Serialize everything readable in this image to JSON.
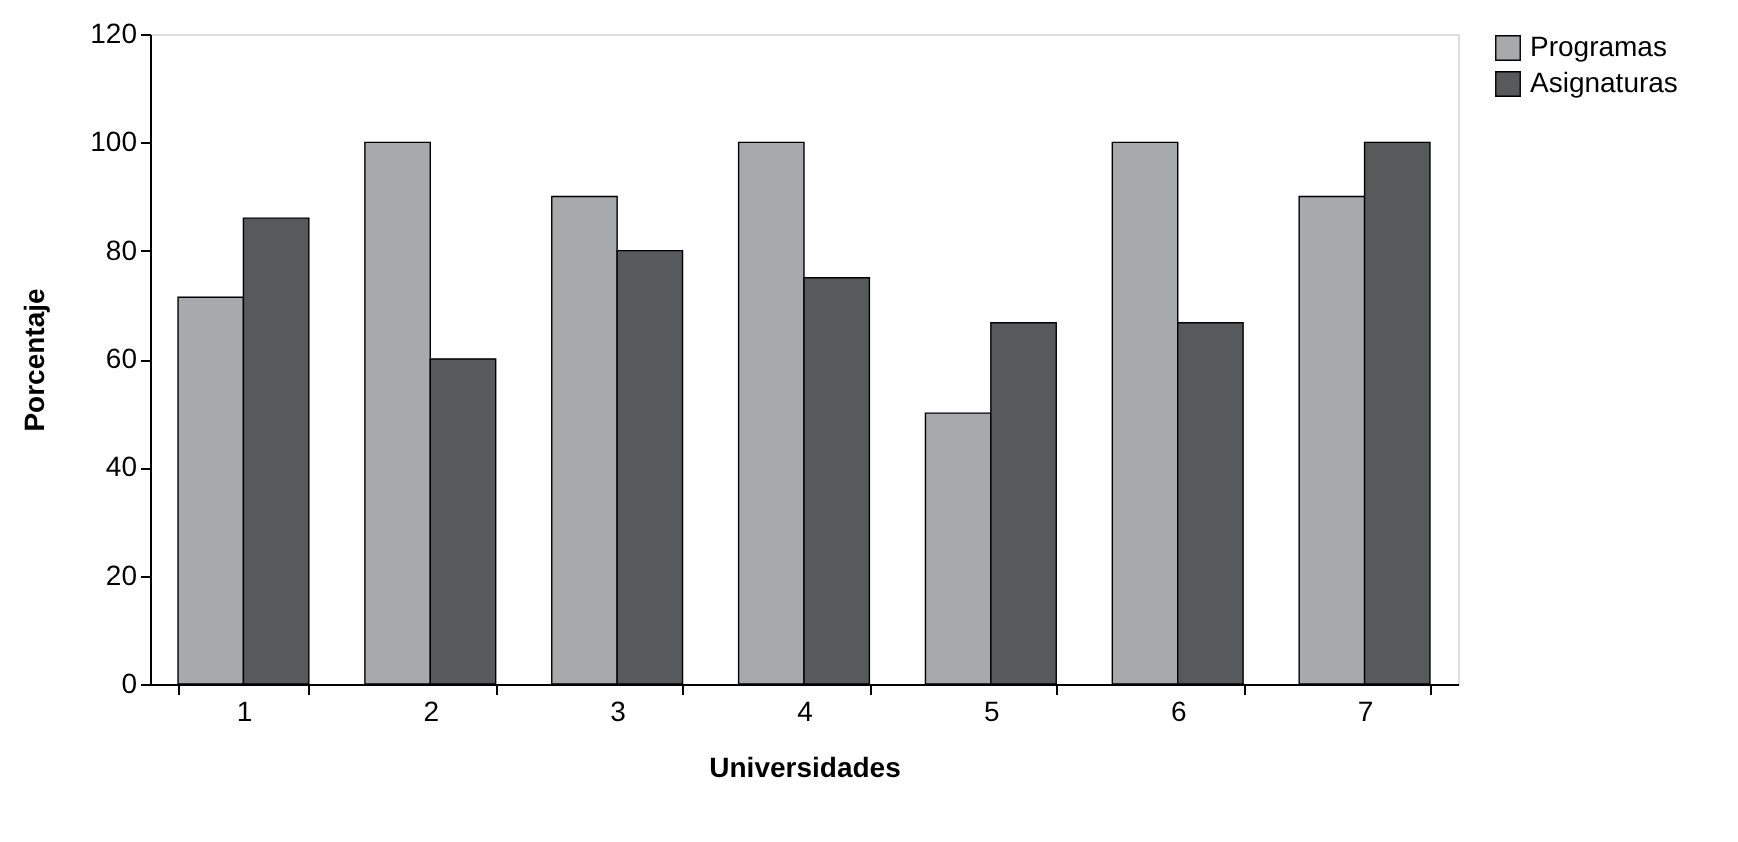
{
  "chart_data": {
    "type": "bar",
    "xlabel": "Universidades",
    "ylabel": "Porcentaje",
    "categories": [
      "1",
      "2",
      "3",
      "4",
      "5",
      "6",
      "7"
    ],
    "series": [
      {
        "name": "Programas",
        "color": "#a7a9ac",
        "values": [
          71.4,
          100,
          90,
          100,
          50,
          100,
          90
        ]
      },
      {
        "name": "Asignaturas",
        "color": "#58595b",
        "values": [
          86,
          60,
          80,
          75,
          66.7,
          66.7,
          100
        ]
      }
    ],
    "ylim": [
      0,
      120
    ],
    "yticks": [
      0,
      20,
      40,
      60,
      80,
      100,
      120
    ],
    "grid": false,
    "legend": "right"
  }
}
